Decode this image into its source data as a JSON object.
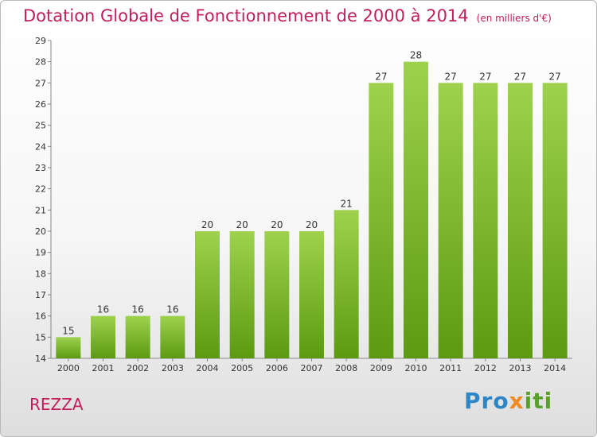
{
  "page": {
    "title": "Dotation Globale de Fonctionnement de 2000 à 2014",
    "unit": "(en milliers d'€)",
    "commune": "REZZA",
    "logo": {
      "part1": "Pro",
      "part2": "x",
      "part3": "iti"
    }
  },
  "colors": {
    "title": "#c21d5d",
    "bar_top": "#9ed24e",
    "bar_bottom": "#5c9a12",
    "axis": "#888888",
    "text": "#333333"
  },
  "chart_data": {
    "type": "bar",
    "title": "Dotation Globale de Fonctionnement de 2000 à 2014",
    "xlabel": "",
    "ylabel": "",
    "categories": [
      "2000",
      "2001",
      "2002",
      "2003",
      "2004",
      "2005",
      "2006",
      "2007",
      "2008",
      "2009",
      "2010",
      "2011",
      "2012",
      "2013",
      "2014"
    ],
    "values": [
      15,
      16,
      16,
      16,
      20,
      20,
      20,
      20,
      21,
      27,
      28,
      27,
      27,
      27,
      27
    ],
    "ylim": [
      14,
      29
    ],
    "yticks": [
      14,
      15,
      16,
      17,
      18,
      19,
      20,
      21,
      22,
      23,
      24,
      25,
      26,
      27,
      28,
      29
    ],
    "grid": false,
    "legend": "none"
  }
}
